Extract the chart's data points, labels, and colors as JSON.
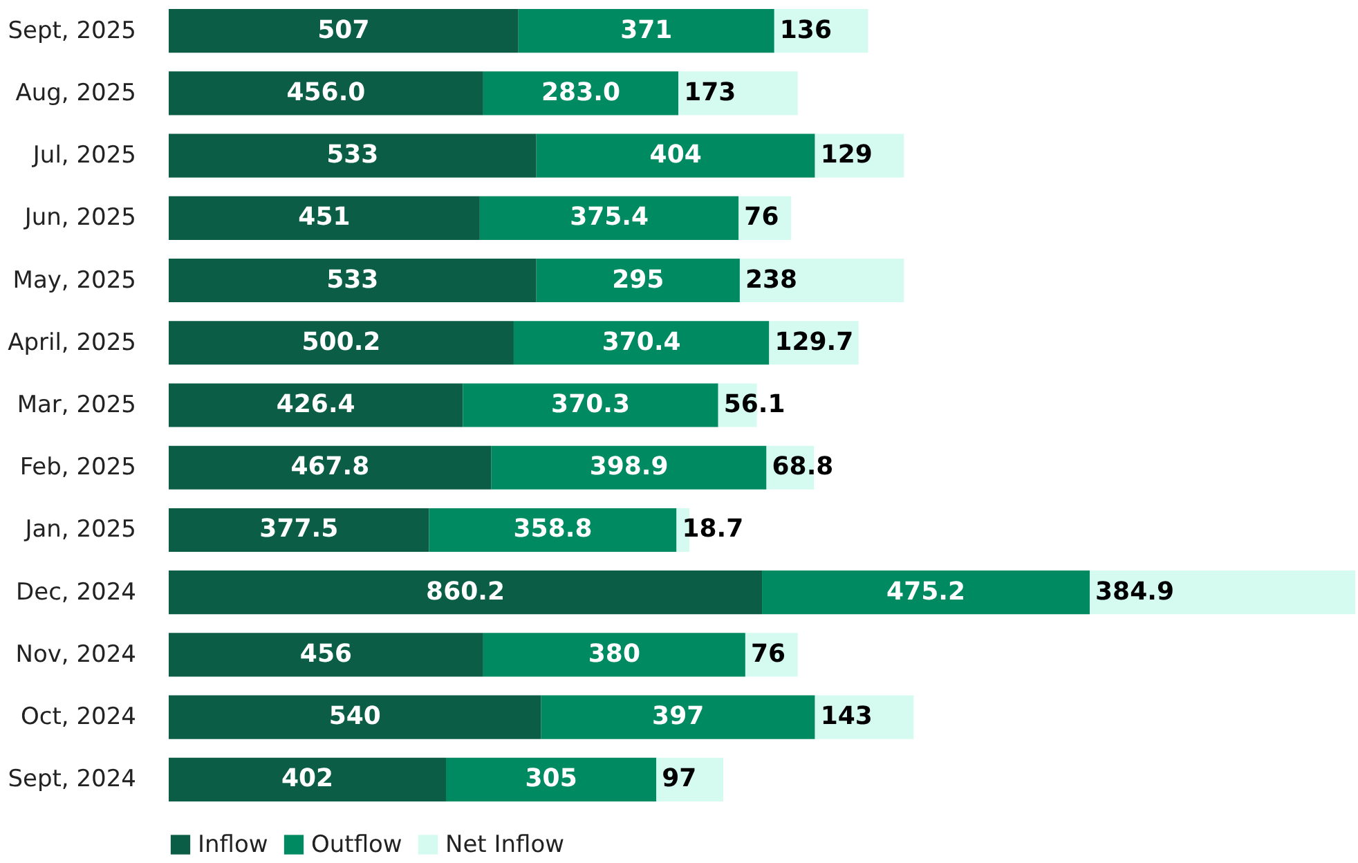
{
  "chart_data": {
    "type": "bar",
    "orientation": "horizontal",
    "stacked": true,
    "data_labels": true,
    "legend": "bottom",
    "categories": [
      "Sept, 2025",
      "Aug, 2025",
      "Jul, 2025",
      "Jun, 2025",
      "May, 2025",
      "April, 2025",
      "Mar, 2025",
      "Feb, 2025",
      "Jan, 2025",
      "Dec, 2024",
      "Nov, 2024",
      "Oct, 2024",
      "Sept, 2024"
    ],
    "series": [
      {
        "name": "Inflow",
        "color": "#0b5e45",
        "values": [
          507,
          456.0,
          533,
          451,
          533,
          500.2,
          426.4,
          467.8,
          377.5,
          860.2,
          456,
          540,
          402
        ],
        "value_labels": [
          "507",
          "456.0",
          "533",
          "451",
          "533",
          "500.2",
          "426.4",
          "467.8",
          "377.5",
          "860.2",
          "456",
          "540",
          "402"
        ]
      },
      {
        "name": "Outflow",
        "color": "#008a62",
        "values": [
          371,
          283.0,
          404,
          375.4,
          295,
          370.4,
          370.3,
          398.9,
          358.8,
          475.2,
          380,
          397,
          305
        ],
        "value_labels": [
          "371",
          "283.0",
          "404",
          "375.4",
          "295",
          "370.4",
          "370.3",
          "398.9",
          "358.8",
          "475.2",
          "380",
          "397",
          "305"
        ]
      },
      {
        "name": "Net Inflow",
        "color": "#d5fbf1",
        "values": [
          136,
          173,
          129,
          76,
          238,
          129.7,
          56.1,
          68.8,
          18.7,
          384.9,
          76,
          143,
          97
        ],
        "value_labels": [
          "136",
          "173",
          "129",
          "76",
          "238",
          "129.7",
          "56.1",
          "68.8",
          "18.7",
          "384.9",
          "76",
          "143",
          "97"
        ]
      }
    ]
  }
}
